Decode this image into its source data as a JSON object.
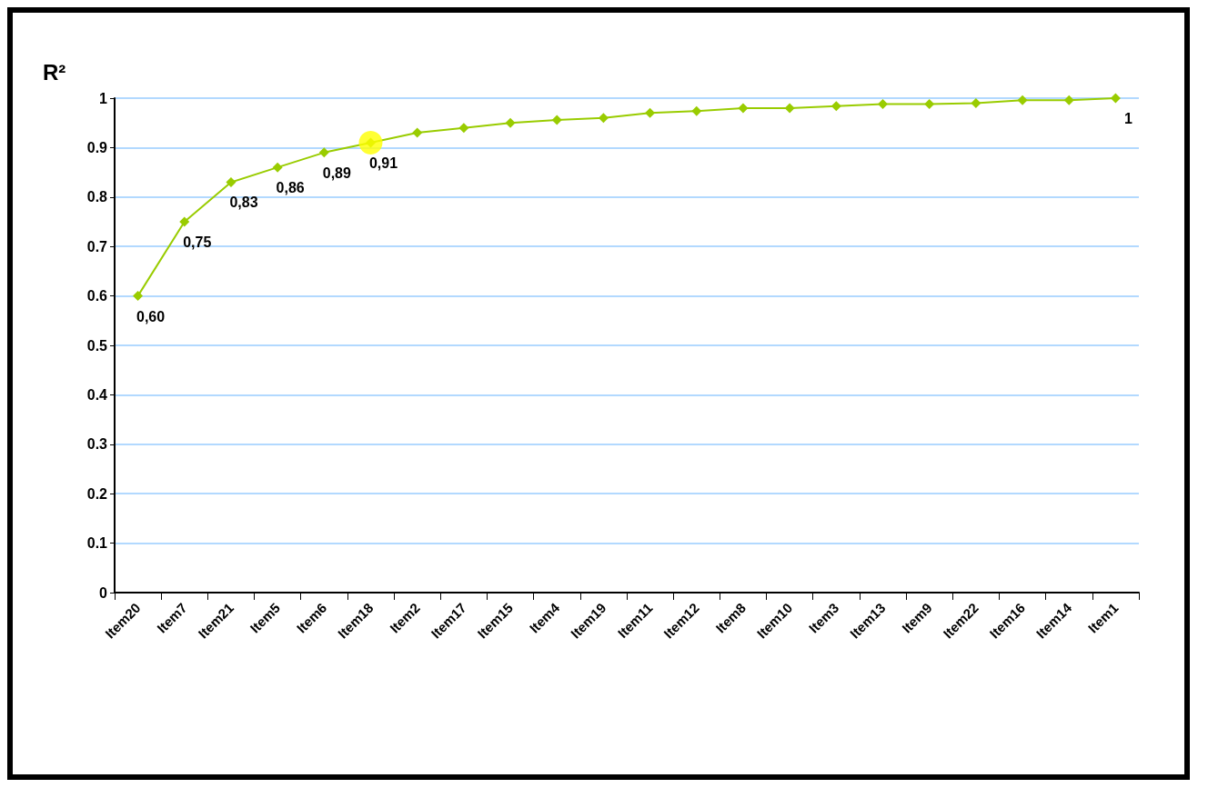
{
  "chart_data": {
    "type": "line",
    "ylabel": "R²",
    "categories": [
      "Item20",
      "Item7",
      "Item21",
      "Item5",
      "Item6",
      "Item18",
      "Item2",
      "Item17",
      "Item15",
      "Item4",
      "Item19",
      "Item11",
      "Item12",
      "Item8",
      "Item10",
      "Item3",
      "Item13",
      "Item9",
      "Item22",
      "Item16",
      "Item14",
      "Item1"
    ],
    "series": [
      {
        "color": "#99cc00",
        "values": [
          0.6,
          0.75,
          0.83,
          0.86,
          0.89,
          0.91,
          0.93,
          0.94,
          0.95,
          0.956,
          0.96,
          0.97,
          0.974,
          0.98,
          0.98,
          0.984,
          0.988,
          0.988,
          0.99,
          0.996,
          0.996,
          1
        ],
        "value_labels": [
          "0,60",
          "0,75",
          "0,83",
          "0,86",
          "0,89",
          "0,91",
          null,
          null,
          null,
          null,
          null,
          null,
          null,
          null,
          null,
          null,
          null,
          null,
          null,
          null,
          null,
          "1"
        ]
      },
      {
        "type": "scatter",
        "color": "#ffff00",
        "x": [
          "Item18"
        ],
        "values": [
          0.91
        ],
        "marker": "circle"
      }
    ],
    "ylim": [
      0,
      1
    ],
    "yticks": [
      0,
      0.1,
      0.2,
      0.3,
      0.4,
      0.5,
      0.6,
      0.7,
      0.8,
      0.9,
      1
    ],
    "grid": "y",
    "marker": "diamond",
    "line_style": "solid"
  }
}
